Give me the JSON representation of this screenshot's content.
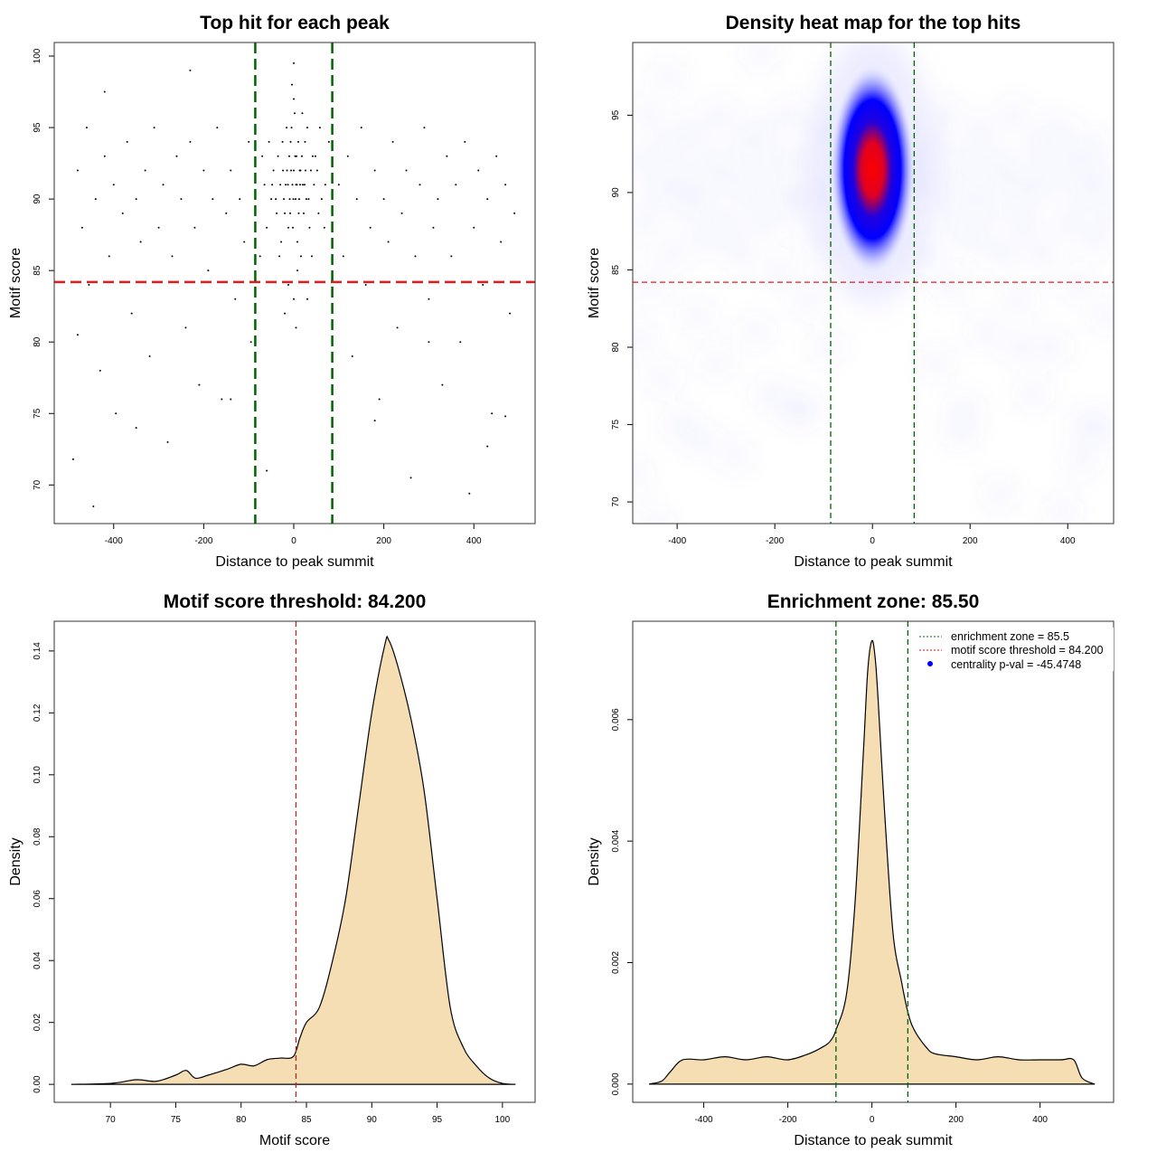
{
  "chart_data": [
    {
      "type": "scatter",
      "title": "Top hit for each peak",
      "xlabel": "Distance to peak summit",
      "ylabel": "Motif score",
      "xlim": [
        -532,
        536
      ],
      "ylim": [
        67.3,
        100.95
      ],
      "xticks": [
        -400,
        -200,
        0,
        200,
        400
      ],
      "yticks": [
        70,
        75,
        80,
        85,
        90,
        95,
        100
      ],
      "grid": false,
      "hline": {
        "value": 84.2,
        "color": "#E41A1C",
        "style": "dashed"
      },
      "vlines": {
        "values": [
          -85.5,
          85.5
        ],
        "color": "#006400",
        "style": "dashed"
      },
      "point_color": "#000000",
      "points": [
        [
          -480,
          92
        ],
        [
          -470,
          88
        ],
        [
          -460,
          95
        ],
        [
          -455,
          84
        ],
        [
          -440,
          90
        ],
        [
          -430,
          78
        ],
        [
          -420,
          93
        ],
        [
          -410,
          86
        ],
        [
          -400,
          91
        ],
        [
          -395,
          75
        ],
        [
          -380,
          89
        ],
        [
          -370,
          94
        ],
        [
          -360,
          82
        ],
        [
          -350,
          90
        ],
        [
          -340,
          87
        ],
        [
          -330,
          92
        ],
        [
          -320,
          79
        ],
        [
          -310,
          95
        ],
        [
          -300,
          88
        ],
        [
          -290,
          91
        ],
        [
          -280,
          73
        ],
        [
          -270,
          86
        ],
        [
          -260,
          93
        ],
        [
          -250,
          90
        ],
        [
          -240,
          81
        ],
        [
          -230,
          94
        ],
        [
          -220,
          88
        ],
        [
          -210,
          77
        ],
        [
          -200,
          92
        ],
        [
          -190,
          85
        ],
        [
          -180,
          90
        ],
        [
          -170,
          95
        ],
        [
          -160,
          76
        ],
        [
          -150,
          89
        ],
        [
          -140,
          92
        ],
        [
          -130,
          83
        ],
        [
          -120,
          90
        ],
        [
          -110,
          87
        ],
        [
          -100,
          94
        ],
        [
          -95,
          80
        ],
        [
          100,
          91
        ],
        [
          110,
          86
        ],
        [
          120,
          93
        ],
        [
          130,
          79
        ],
        [
          140,
          90
        ],
        [
          150,
          95
        ],
        [
          160,
          84
        ],
        [
          170,
          88
        ],
        [
          180,
          92
        ],
        [
          190,
          76
        ],
        [
          200,
          90
        ],
        [
          210,
          87
        ],
        [
          220,
          94
        ],
        [
          230,
          81
        ],
        [
          240,
          89
        ],
        [
          250,
          92
        ],
        [
          260,
          70.5
        ],
        [
          270,
          86
        ],
        [
          280,
          91
        ],
        [
          290,
          95
        ],
        [
          300,
          83
        ],
        [
          310,
          88
        ],
        [
          320,
          90
        ],
        [
          330,
          77
        ],
        [
          340,
          93
        ],
        [
          350,
          86
        ],
        [
          360,
          91
        ],
        [
          370,
          80
        ],
        [
          380,
          94
        ],
        [
          390,
          69.4
        ],
        [
          400,
          88
        ],
        [
          410,
          92
        ],
        [
          420,
          84
        ],
        [
          430,
          90
        ],
        [
          440,
          75
        ],
        [
          450,
          93
        ],
        [
          460,
          87
        ],
        [
          470,
          91
        ],
        [
          480,
          82
        ],
        [
          490,
          89
        ],
        [
          -490,
          71.8
        ],
        [
          -445,
          68.5
        ],
        [
          -350,
          74
        ],
        [
          -140,
          76
        ],
        [
          -60,
          71
        ],
        [
          180,
          74.5
        ],
        [
          -420,
          97.5
        ],
        [
          -230,
          99
        ],
        [
          -480,
          80.5
        ],
        [
          300,
          80
        ],
        [
          430,
          72.7
        ],
        [
          470,
          74.8
        ],
        [
          0,
          92
        ],
        [
          5,
          91
        ],
        [
          -10,
          93
        ],
        [
          12,
          90
        ],
        [
          -20,
          89
        ],
        [
          25,
          94
        ],
        [
          -30,
          91
        ],
        [
          35,
          88
        ],
        [
          -5,
          95
        ],
        [
          8,
          87
        ],
        [
          -15,
          92
        ],
        [
          18,
          93
        ],
        [
          -40,
          90
        ],
        [
          45,
          91
        ],
        [
          2,
          96
        ],
        [
          -8,
          89
        ],
        [
          15,
          92
        ],
        [
          -25,
          94
        ],
        [
          28,
          90
        ],
        [
          -3,
          91
        ],
        [
          6,
          93
        ],
        [
          -12,
          88
        ],
        [
          20,
          91
        ],
        [
          -35,
          93
        ],
        [
          38,
          92
        ],
        [
          0,
          97
        ],
        [
          -50,
          90
        ],
        [
          55,
          89
        ],
        [
          10,
          94
        ],
        [
          -18,
          91
        ],
        [
          22,
          89
        ],
        [
          -6,
          92
        ],
        [
          4,
          90
        ],
        [
          -28,
          87
        ],
        [
          30,
          95
        ],
        [
          -45,
          92
        ],
        [
          48,
          93
        ],
        [
          -2,
          88
        ],
        [
          14,
          91
        ],
        [
          -22,
          90
        ],
        [
          26,
          92
        ],
        [
          -60,
          88
        ],
        [
          62,
          90
        ],
        [
          -70,
          93
        ],
        [
          70,
          91
        ],
        [
          -75,
          86
        ],
        [
          78,
          94
        ],
        [
          0,
          99.5
        ],
        [
          -4,
          98
        ],
        [
          8,
          85
        ],
        [
          -12,
          84
        ],
        [
          16,
          86
        ],
        [
          -32,
          86
        ],
        [
          40,
          86
        ],
        [
          -55,
          94
        ],
        [
          58,
          95
        ],
        [
          3,
          93
        ],
        [
          -9,
          90
        ],
        [
          11,
          89
        ],
        [
          -16,
          95
        ],
        [
          19,
          96
        ],
        [
          0,
          83
        ],
        [
          5,
          81
        ],
        [
          -20,
          82
        ],
        [
          30,
          83
        ],
        [
          -65,
          91
        ],
        [
          68,
          88
        ],
        [
          -1,
          90
        ],
        [
          7,
          91
        ],
        [
          -7,
          94
        ],
        [
          13,
          92
        ],
        [
          -13,
          91
        ],
        [
          24,
          91
        ],
        [
          -24,
          92
        ],
        [
          33,
          90
        ],
        [
          -38,
          89
        ],
        [
          42,
          93
        ],
        [
          -48,
          91
        ],
        [
          52,
          92
        ]
      ]
    },
    {
      "type": "heatmap",
      "title": "Density heat map for the top hits",
      "xlabel": "Distance to peak summit",
      "ylabel": "Motif score",
      "xlim": [
        -491,
        494
      ],
      "ylim": [
        68.6,
        99.7
      ],
      "xticks": [
        -400,
        -200,
        0,
        200,
        400
      ],
      "yticks": [
        70,
        75,
        80,
        85,
        90,
        95
      ],
      "peak": {
        "x": 0,
        "y": 91.5
      },
      "colors": {
        "low": "#FFFFFF",
        "mid": "#0000FF",
        "high": "#FF0000"
      },
      "hline": {
        "value": 84.2,
        "color": "#E41A1C",
        "style": "dashed"
      },
      "vlines": {
        "values": [
          -85.5,
          85.5
        ],
        "color": "#006400",
        "style": "dashed"
      }
    },
    {
      "type": "area",
      "title": "Motif score threshold: 84.200",
      "xlabel": "Motif score",
      "ylabel": "Density",
      "xlim": [
        65.7,
        102.5
      ],
      "ylim": [
        -0.0058,
        0.1496
      ],
      "xticks": [
        70,
        75,
        80,
        85,
        90,
        95,
        100
      ],
      "yticks": [
        0.0,
        0.02,
        0.04,
        0.06,
        0.08,
        0.1,
        0.12,
        0.14
      ],
      "ytick_labels": [
        "0.00",
        "0.02",
        "0.04",
        "0.06",
        "0.08",
        "0.10",
        "0.12",
        "0.14"
      ],
      "fill": "#F5DEB3",
      "vline": {
        "value": 84.2,
        "color": "#B22222",
        "style": "dashed"
      },
      "x": [
        67,
        70,
        72,
        73.5,
        75,
        75.8,
        76.5,
        77.5,
        79,
        80,
        81,
        82,
        83,
        84,
        84.5,
        85,
        86,
        87,
        88,
        89,
        90,
        91,
        91.3,
        92,
        93,
        94,
        95,
        96,
        97,
        98,
        99,
        100,
        101
      ],
      "y": [
        0,
        0.0003,
        0.0015,
        0.001,
        0.003,
        0.0045,
        0.002,
        0.003,
        0.005,
        0.0065,
        0.006,
        0.008,
        0.0085,
        0.009,
        0.015,
        0.02,
        0.025,
        0.04,
        0.06,
        0.09,
        0.12,
        0.142,
        0.1435,
        0.135,
        0.118,
        0.095,
        0.06,
        0.025,
        0.012,
        0.006,
        0.002,
        0.0003,
        0
      ]
    },
    {
      "type": "area",
      "title": "Enrichment zone: 85.50",
      "xlabel": "Distance to peak summit",
      "ylabel": "Density",
      "xlim": [
        -569,
        575
      ],
      "ylim": [
        -0.0003,
        0.00762
      ],
      "xticks": [
        -400,
        -200,
        0,
        200,
        400
      ],
      "yticks": [
        0,
        0.002,
        0.004,
        0.006
      ],
      "ytick_labels": [
        "0.000",
        "0.002",
        "0.004",
        "0.006"
      ],
      "fill": "#F5DEB3",
      "vlines": {
        "values": [
          -85.5,
          85.5
        ],
        "color": "#006400",
        "style": "dashed"
      },
      "x": [
        -530,
        -500,
        -480,
        -450,
        -400,
        -350,
        -300,
        -250,
        -200,
        -150,
        -120,
        -100,
        -85,
        -60,
        -40,
        -20,
        -10,
        0,
        8,
        15,
        30,
        50,
        70,
        85,
        100,
        130,
        150,
        200,
        250,
        300,
        350,
        400,
        450,
        480,
        500,
        530
      ],
      "y": [
        0,
        5e-05,
        0.0002,
        0.0004,
        0.0004,
        0.00045,
        0.0004,
        0.00045,
        0.0004,
        0.0005,
        0.0006,
        0.0007,
        0.0009,
        0.0015,
        0.003,
        0.0055,
        0.0068,
        0.0073,
        0.007,
        0.0063,
        0.0045,
        0.0025,
        0.0017,
        0.0012,
        0.0009,
        0.0006,
        0.0005,
        0.00045,
        0.0004,
        0.00045,
        0.0004,
        0.0004,
        0.0004,
        0.0004,
        0.0001,
        0
      ],
      "legend": {
        "position": "top-right",
        "entries": [
          {
            "label": "enrichment zone = 85.5",
            "color": "#006400",
            "symbol": "dotted-line"
          },
          {
            "label": "motif score threshold = 84.200",
            "color": "#FF0000",
            "symbol": "dotted-line"
          },
          {
            "label": "centrality p-val = -45.4748",
            "color": "#0000FF",
            "symbol": "dot"
          }
        ]
      }
    }
  ]
}
